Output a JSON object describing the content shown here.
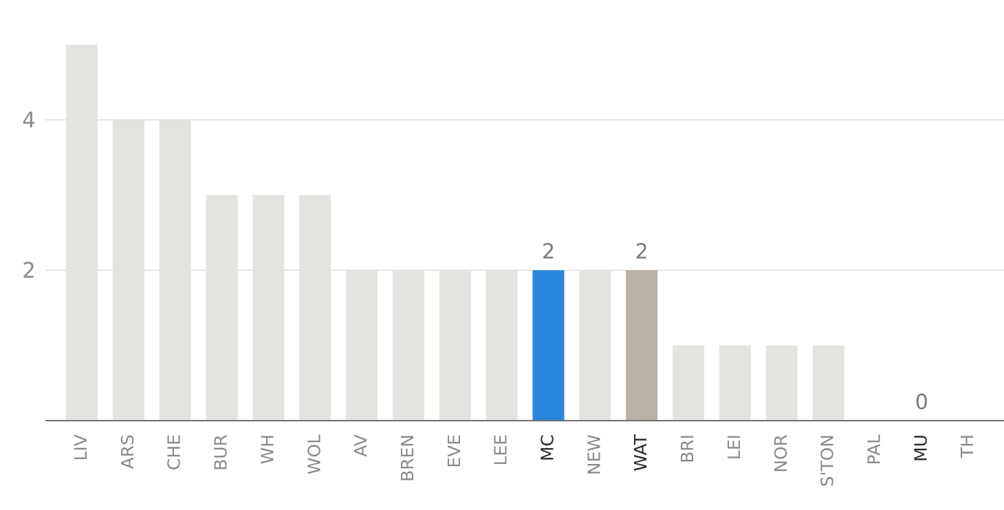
{
  "chart_data": {
    "type": "bar",
    "categories": [
      "LIV",
      "ARS",
      "CHE",
      "BUR",
      "WH",
      "WOL",
      "AV",
      "BREN",
      "EVE",
      "LEE",
      "MC",
      "NEW",
      "WAT",
      "BRI",
      "LEI",
      "NOR",
      "S'TON",
      "PAL",
      "MU",
      "TH"
    ],
    "values": [
      5,
      4,
      4,
      3,
      3,
      3,
      2,
      2,
      2,
      2,
      2,
      2,
      2,
      1,
      1,
      1,
      1,
      0,
      0,
      0
    ],
    "ylim": [
      0,
      5
    ],
    "yticks": [
      2,
      4
    ],
    "grid": true,
    "title": "",
    "xlabel": "",
    "ylabel": "",
    "default_color": "#e4e3df",
    "highlights": [
      {
        "category": "MC",
        "color": "#2a86de",
        "label": "2"
      },
      {
        "category": "WAT",
        "color": "#bab1a6",
        "label": "2"
      },
      {
        "category": "MU",
        "color": "#e4e3df",
        "label": "0"
      }
    ],
    "emphasized_tick_labels": [
      "MC",
      "WAT",
      "MU"
    ]
  }
}
